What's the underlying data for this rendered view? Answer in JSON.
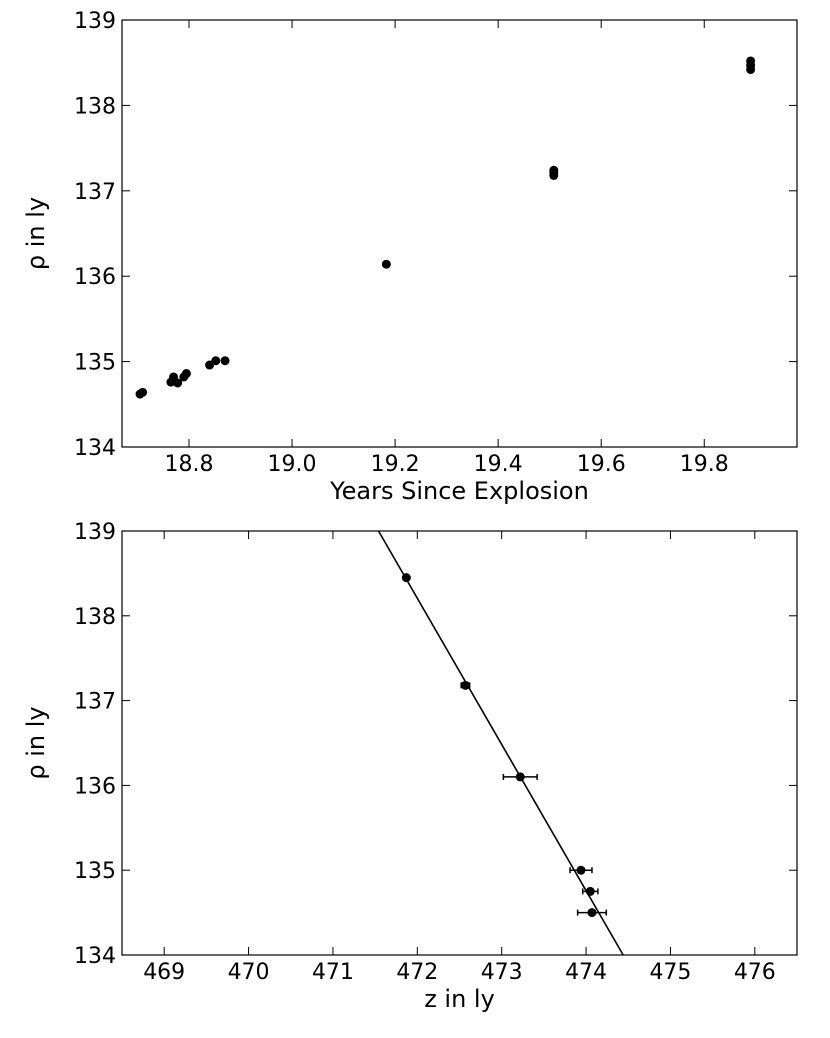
{
  "chart_data": [
    {
      "type": "scatter",
      "xlabel": "Years Since Explosion",
      "ylabel": "ρ in ly",
      "xlim": [
        18.67,
        19.98
      ],
      "ylim": [
        134,
        139
      ],
      "xticks": [
        "18.8",
        "19.0",
        "19.2",
        "19.4",
        "19.6",
        "19.8"
      ],
      "yticks": [
        "134",
        "135",
        "136",
        "137",
        "138",
        "139"
      ],
      "grid": false,
      "series": [
        {
          "color": "#000000",
          "points": [
            {
              "x": 18.705,
              "y": 134.62
            },
            {
              "x": 18.71,
              "y": 134.64
            },
            {
              "x": 18.765,
              "y": 134.76
            },
            {
              "x": 18.77,
              "y": 134.82
            },
            {
              "x": 18.778,
              "y": 134.75
            },
            {
              "x": 18.79,
              "y": 134.82
            },
            {
              "x": 18.795,
              "y": 134.86
            },
            {
              "x": 18.84,
              "y": 134.96
            },
            {
              "x": 18.852,
              "y": 135.01
            },
            {
              "x": 18.87,
              "y": 135.01
            },
            {
              "x": 19.183,
              "y": 136.14
            },
            {
              "x": 19.508,
              "y": 137.18
            },
            {
              "x": 19.508,
              "y": 137.21
            },
            {
              "x": 19.508,
              "y": 137.24
            },
            {
              "x": 19.89,
              "y": 138.42
            },
            {
              "x": 19.89,
              "y": 138.47
            },
            {
              "x": 19.89,
              "y": 138.52
            }
          ]
        }
      ]
    },
    {
      "type": "scatter",
      "xlabel": "z in ly",
      "ylabel": "ρ in ly",
      "xlim": [
        468.5,
        476.5
      ],
      "ylim": [
        134,
        139
      ],
      "xticks": [
        "469",
        "470",
        "471",
        "472",
        "473",
        "474",
        "475",
        "476"
      ],
      "yticks": [
        "134",
        "135",
        "136",
        "137",
        "138",
        "139"
      ],
      "grid": false,
      "series": [
        {
          "color": "#000000",
          "points": [
            {
              "x": 471.87,
              "y": 138.45,
              "xerr": 0.0
            },
            {
              "x": 472.57,
              "y": 137.18,
              "xerr": 0.05
            },
            {
              "x": 473.22,
              "y": 136.1,
              "xerr": 0.2
            },
            {
              "x": 473.94,
              "y": 135.0,
              "xerr": 0.13
            },
            {
              "x": 474.05,
              "y": 134.75,
              "xerr": 0.09
            },
            {
              "x": 474.07,
              "y": 134.5,
              "xerr": 0.17
            }
          ]
        }
      ],
      "fit_line": {
        "x": [
          471.54,
          474.44
        ],
        "y": [
          139,
          134
        ],
        "color": "#000000"
      }
    }
  ]
}
